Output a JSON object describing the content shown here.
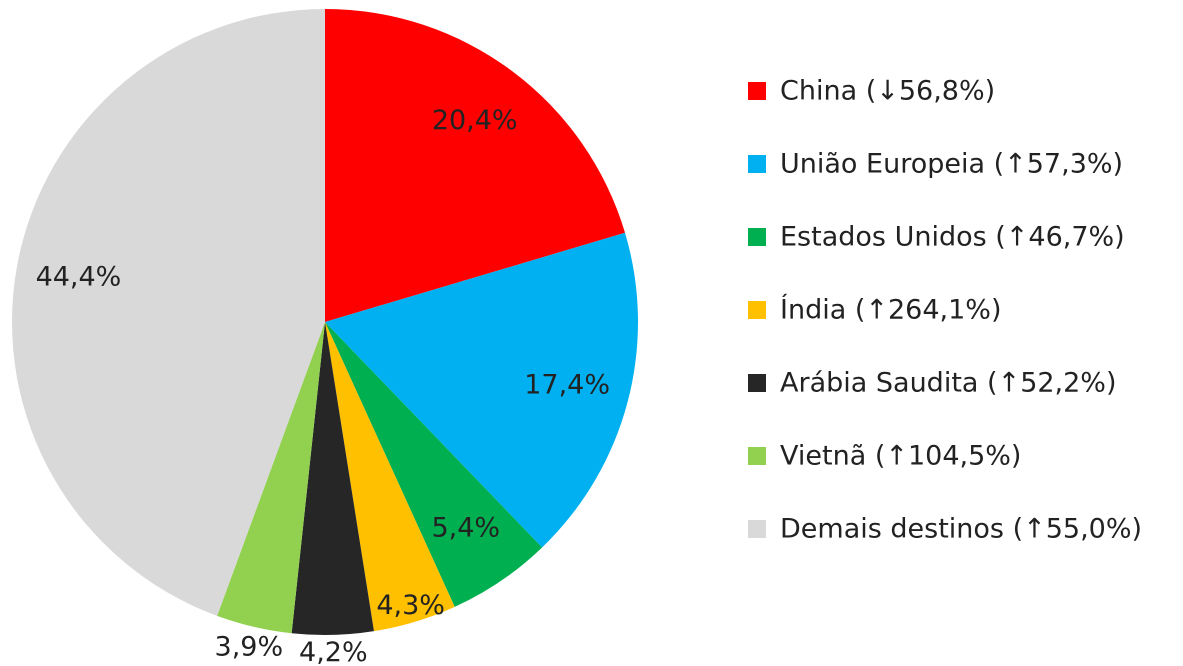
{
  "chart_data": {
    "type": "pie",
    "categories": [
      "China (↓56,8%)",
      "União Europeia (↑57,3%)",
      "Estados Unidos (↑46,7%)",
      "Índia (↑264,1%)",
      "Arábia Saudita (↑52,2%)",
      "Vietnã (↑104,5%)",
      "Demais destinos (↑55,0%)"
    ],
    "values": [
      20.4,
      17.4,
      5.4,
      4.3,
      4.2,
      3.9,
      44.4
    ],
    "value_labels": [
      "20,4%",
      "17,4%",
      "5,4%",
      "4,3%",
      "4,2%",
      "3,9%",
      "44,4%"
    ],
    "colors": [
      "#ff0000",
      "#00b0f0",
      "#00b050",
      "#ffc000",
      "#262626",
      "#92d050",
      "#d9d9d9"
    ],
    "legend": "right"
  }
}
